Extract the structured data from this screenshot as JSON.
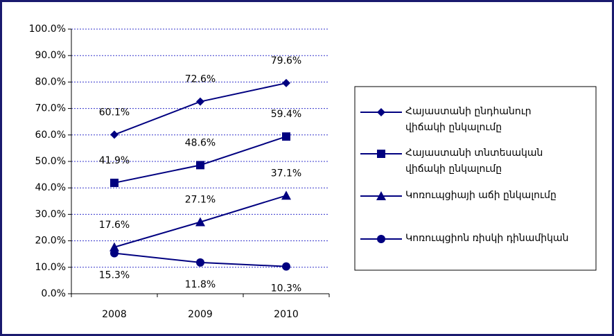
{
  "chart_data": {
    "type": "line",
    "categories": [
      "2008",
      "2009",
      "2010"
    ],
    "series": [
      {
        "name": "Հայաստանի ընդհանուր վիճակի ընկալումը",
        "color": "#000080",
        "marker": "diamond",
        "values": [
          60.1,
          72.6,
          79.6
        ],
        "value_labels": [
          "60.1%",
          "72.6%",
          "79.6%"
        ]
      },
      {
        "name": "Հայաստանի տնտեսական վիճակի ընկալումը",
        "color": "#000080",
        "marker": "square",
        "values": [
          41.9,
          48.6,
          59.4
        ],
        "value_labels": [
          "41.9%",
          "48.6%",
          "59.4%"
        ]
      },
      {
        "name": "Կոռուպցիայի աճի ընկալումը",
        "color": "#000080",
        "marker": "triangle",
        "values": [
          17.6,
          27.1,
          37.1
        ],
        "value_labels": [
          "17.6%",
          "27.1%",
          "37.1%"
        ]
      },
      {
        "name": "Կոռուպցիոն ռիսկի դինամիկան",
        "color": "#000080",
        "marker": "circle",
        "values": [
          15.3,
          11.8,
          10.3
        ],
        "value_labels": [
          "15.3%",
          "11.8%",
          "10.3%"
        ]
      }
    ],
    "ylim": [
      0,
      100
    ],
    "yticks": [
      {
        "value": 0,
        "label": "0.0%"
      },
      {
        "value": 10,
        "label": "10.0%"
      },
      {
        "value": 20,
        "label": "20.0%"
      },
      {
        "value": 30,
        "label": "30.0%"
      },
      {
        "value": 40,
        "label": "40.0%"
      },
      {
        "value": 50,
        "label": "50.0%"
      },
      {
        "value": 60,
        "label": "60.0%"
      },
      {
        "value": 70,
        "label": "70.0%"
      },
      {
        "value": 80,
        "label": "80.0%"
      },
      {
        "value": 90,
        "label": "90.0%"
      },
      {
        "value": 100,
        "label": "100.0%"
      }
    ],
    "grid": true,
    "legend": "right"
  }
}
